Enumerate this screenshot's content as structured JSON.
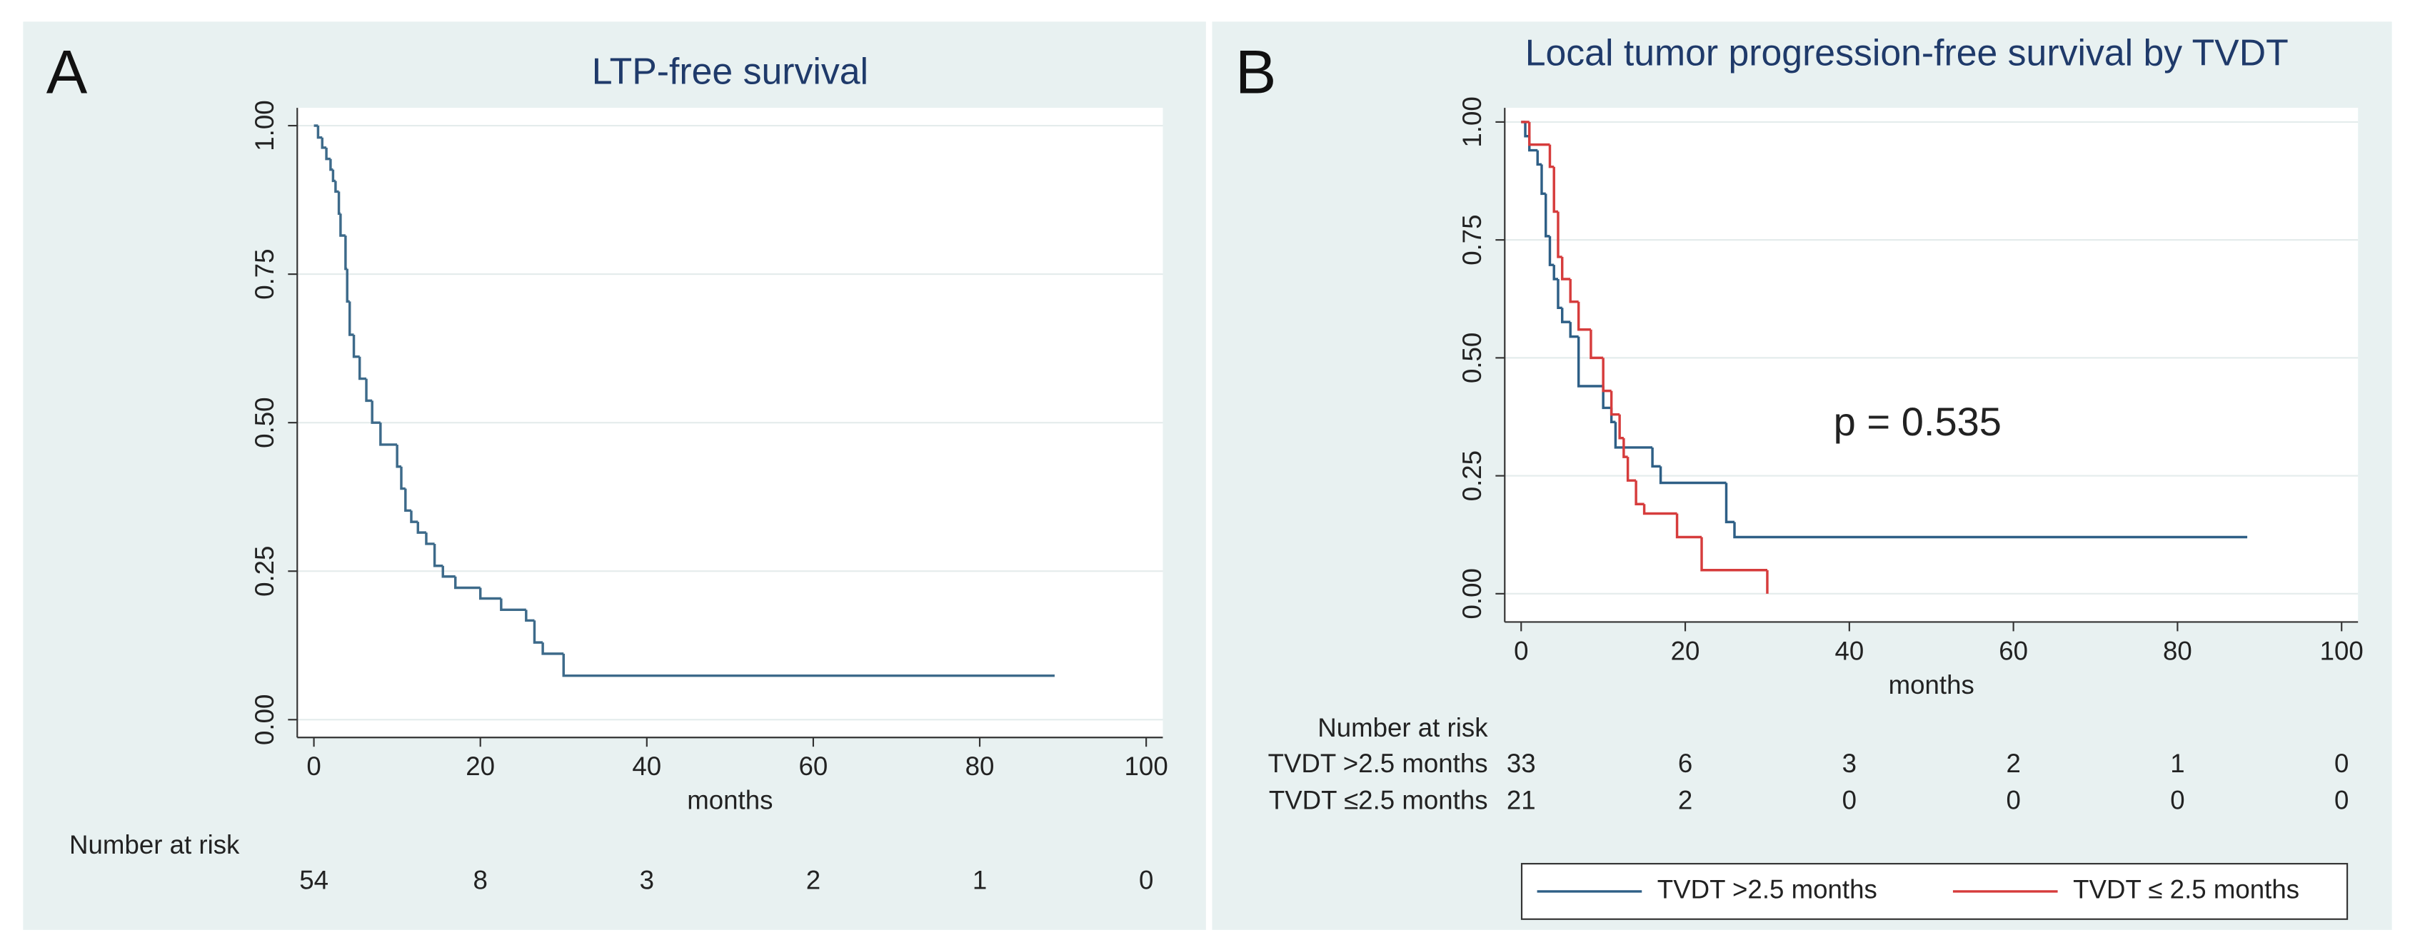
{
  "chart_data": [
    {
      "type": "line",
      "step": true,
      "label": "A",
      "title": "LTP-free survival",
      "xlabel": "months",
      "xlim": [
        -2,
        102
      ],
      "xticks": [
        0,
        20,
        40,
        60,
        80,
        100
      ],
      "ylim": [
        -0.03,
        1.03
      ],
      "yticks": [
        {
          "value": 0,
          "label": "0.00"
        },
        {
          "value": 0.25,
          "label": "0.25"
        },
        {
          "value": 0.5,
          "label": "0.50"
        },
        {
          "value": 0.75,
          "label": "0.75"
        },
        {
          "value": 1,
          "label": "1.00"
        }
      ],
      "grid": true,
      "series": [
        {
          "name": "LTP-free survival",
          "color": "#3d6a8a",
          "x": [
            0,
            0.5,
            1,
            1.5,
            2,
            2.3,
            2.6,
            3,
            3.2,
            3.8,
            4,
            4.3,
            4.8,
            5.5,
            6.3,
            7,
            8,
            10,
            10.5,
            11,
            11.7,
            12.5,
            13.5,
            14.5,
            15.5,
            17,
            20,
            22.5,
            25.5,
            26.5,
            27.5,
            30,
            89
          ],
          "values": [
            1,
            0.98,
            0.963,
            0.944,
            0.926,
            0.907,
            0.889,
            0.852,
            0.815,
            0.759,
            0.704,
            0.648,
            0.611,
            0.574,
            0.537,
            0.5,
            0.463,
            0.426,
            0.389,
            0.352,
            0.333,
            0.315,
            0.296,
            0.259,
            0.241,
            0.222,
            0.204,
            0.185,
            0.167,
            0.13,
            0.111,
            0.074,
            0.074
          ]
        }
      ],
      "risk_table": {
        "title": "Number at risk",
        "rows": [
          {
            "values": [
              54,
              8,
              3,
              2,
              1,
              0
            ]
          }
        ]
      }
    },
    {
      "type": "line",
      "step": true,
      "label": "B",
      "title": "Local tumor progression-free survival by TVDT",
      "xlabel": "months",
      "xlim": [
        -2,
        102
      ],
      "xticks": [
        0,
        20,
        40,
        60,
        80,
        100
      ],
      "ylim": [
        -0.06,
        1.03
      ],
      "yticks": [
        {
          "value": 0,
          "label": "0.00"
        },
        {
          "value": 0.25,
          "label": "0.25"
        },
        {
          "value": 0.5,
          "label": "0.50"
        },
        {
          "value": 0.75,
          "label": "0.75"
        },
        {
          "value": 1,
          "label": "1.00"
        }
      ],
      "grid": true,
      "annotation": "p = 0.535",
      "legend": "bottom",
      "series": [
        {
          "name": "TVDT >2.5 months",
          "color": "#2e5f86",
          "x": [
            0,
            0.5,
            1,
            2,
            2.5,
            3,
            3.5,
            4,
            4.5,
            5,
            6,
            7,
            10,
            11,
            11.5,
            16,
            17,
            25,
            26,
            88.5
          ],
          "values": [
            1,
            0.97,
            0.94,
            0.91,
            0.848,
            0.758,
            0.697,
            0.667,
            0.606,
            0.576,
            0.545,
            0.44,
            0.394,
            0.364,
            0.31,
            0.27,
            0.235,
            0.152,
            0.12,
            0.12
          ]
        },
        {
          "name": "TVDT ≤ 2.5 months",
          "color": "#d63c3c",
          "x": [
            0,
            1,
            3.5,
            4,
            4.5,
            5,
            6,
            7,
            8.5,
            10,
            11,
            12,
            12.5,
            13,
            14,
            15,
            19,
            22,
            30
          ],
          "values": [
            1,
            0.952,
            0.905,
            0.81,
            0.714,
            0.667,
            0.619,
            0.56,
            0.5,
            0.43,
            0.38,
            0.33,
            0.29,
            0.24,
            0.19,
            0.17,
            0.12,
            0.05,
            0
          ]
        }
      ],
      "risk_table": {
        "title": "Number at risk",
        "rows": [
          {
            "name": "TVDT >2.5 months",
            "values": [
              33,
              6,
              3,
              2,
              1,
              0
            ]
          },
          {
            "name": "TVDT ≤2.5 months",
            "values": [
              21,
              2,
              0,
              0,
              0,
              0
            ]
          }
        ]
      }
    }
  ]
}
